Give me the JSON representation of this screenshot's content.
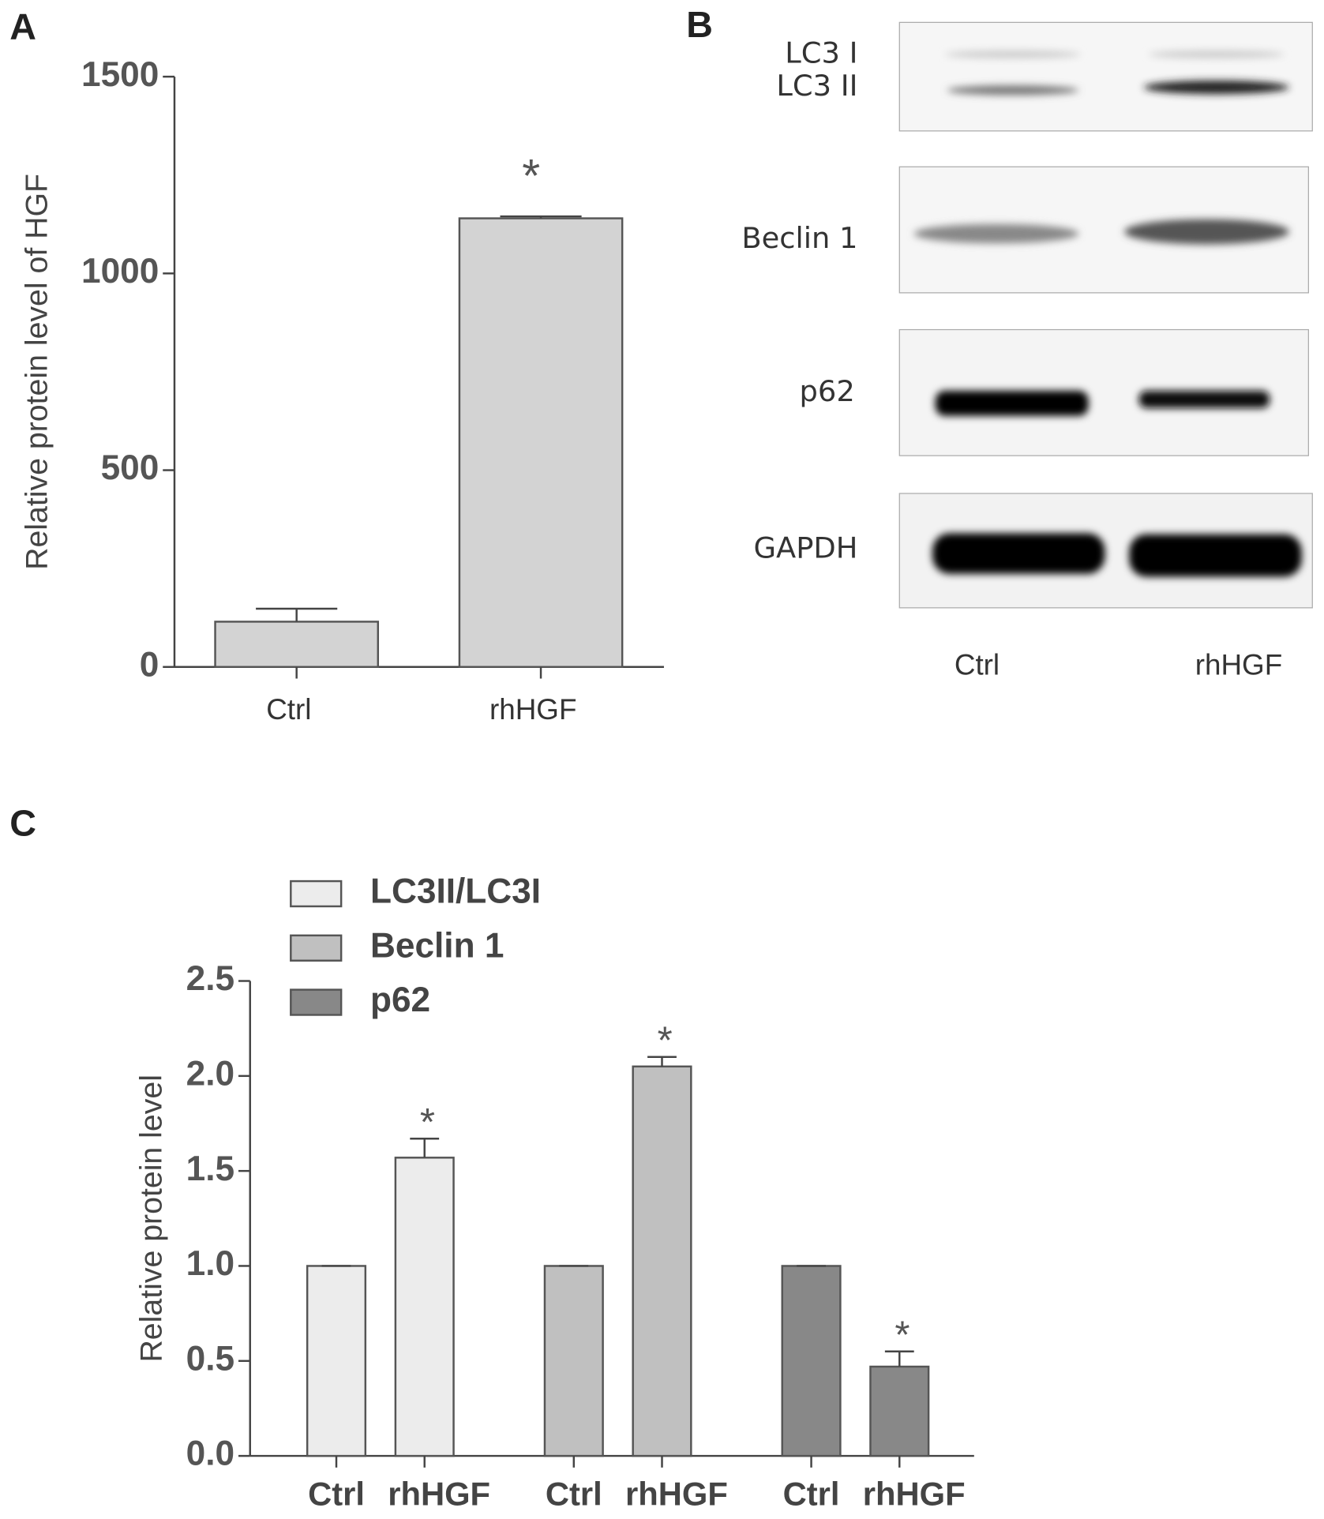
{
  "chart_data": [
    {
      "type": "bar",
      "panel": "A",
      "ylabel": "Relative protein level of HGF",
      "categories": [
        "Ctrl",
        "rhHGF"
      ],
      "values": [
        115,
        1140
      ],
      "errors": [
        33,
        5
      ],
      "color": "#d3d3d3",
      "annotations": [
        null,
        "*"
      ],
      "ylim": [
        0,
        1500
      ],
      "yticks": [
        0,
        500,
        1000,
        1500
      ]
    },
    {
      "type": "grouped_bar",
      "panel": "C",
      "ylabel": "Relative protein level",
      "categories": [
        "Ctrl",
        "rhHGF"
      ],
      "series": [
        {
          "name": "LC3II/LC3I",
          "color": "#ececec",
          "values": [
            1.0,
            1.57
          ],
          "errors": [
            0,
            0.1
          ],
          "annotation": "*"
        },
        {
          "name": "Beclin 1",
          "color": "#c0c0c0",
          "values": [
            1.0,
            2.05
          ],
          "errors": [
            0,
            0.05
          ],
          "annotation": "*"
        },
        {
          "name": "p62",
          "color": "#888888",
          "values": [
            1.0,
            0.47
          ],
          "errors": [
            0,
            0.08
          ],
          "annotation": "*"
        }
      ],
      "ylim": [
        0,
        2.5
      ],
      "yticks": [
        {
          "value": 0,
          "label": "0.0"
        },
        0.5,
        {
          "value": 1,
          "label": "1.0"
        },
        1.5,
        {
          "value": 2,
          "label": "2.0"
        },
        2.5
      ],
      "legend": "top-left"
    }
  ],
  "blot": {
    "panel": "B",
    "rows": [
      "LC3 I",
      "LC3 II",
      "Beclin 1",
      "p62",
      "GAPDH"
    ],
    "lanes": [
      "Ctrl",
      "rhHGF"
    ]
  }
}
